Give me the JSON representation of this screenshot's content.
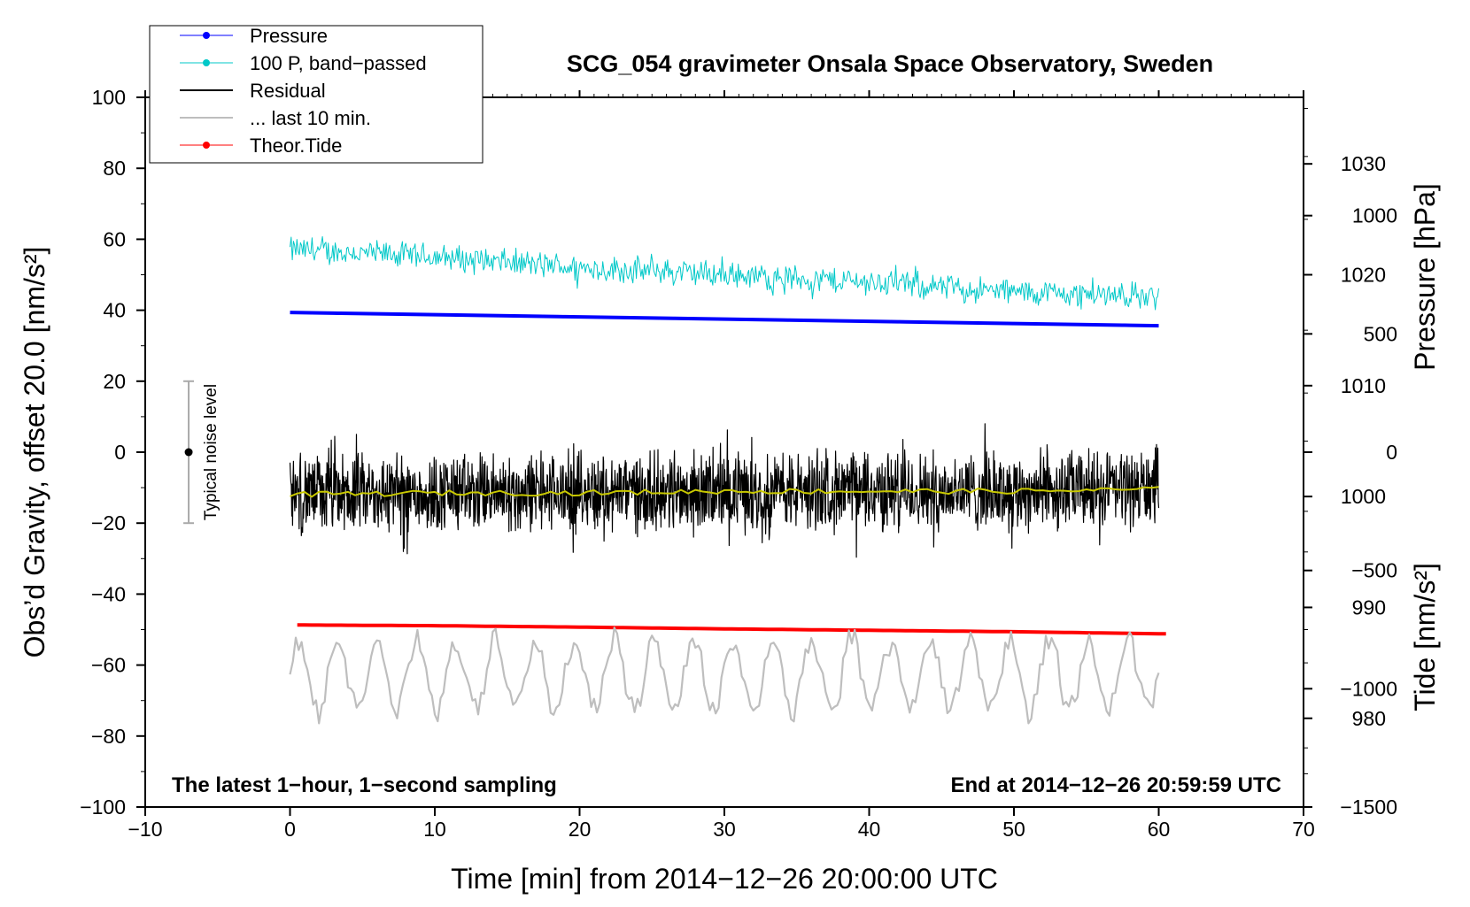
{
  "chart_data": {
    "type": "line",
    "title": "SCG_054 gravimeter Onsala Space Observatory, Sweden",
    "xlabel": "Time [min] from 2014−12−26 20:00:00 UTC",
    "ylabel_left": "Obs’d Gravity, offset 20.0 [nm/s²]",
    "ylabel_pressure": "Pressure [hPa]",
    "ylabel_tide": "Tide [nm/s²]",
    "xlim": [
      -10,
      70
    ],
    "ylim": [
      -100,
      100
    ],
    "pressure_ylim": [
      972,
      1036
    ],
    "tide_ylim": [
      -1500,
      1500
    ],
    "x_ticks": [
      "−10",
      "0",
      "10",
      "20",
      "30",
      "40",
      "50",
      "60",
      "70"
    ],
    "x_tick_values": [
      -10,
      0,
      10,
      20,
      30,
      40,
      50,
      60,
      70
    ],
    "y_ticks": [
      "100",
      "80",
      "60",
      "40",
      "20",
      "0",
      "−20",
      "−40",
      "−60",
      "−80",
      "−100"
    ],
    "y_tick_values": [
      100,
      80,
      60,
      40,
      20,
      0,
      -20,
      -40,
      -60,
      -80,
      -100
    ],
    "pressure_ticks": [
      "1030",
      "1020",
      "1010",
      "1000",
      "990",
      "980"
    ],
    "pressure_tick_values": [
      1030,
      1020,
      1010,
      1000,
      990,
      980
    ],
    "tide_ticks": [
      "1000",
      "500",
      "0",
      "−500",
      "−1000",
      "−1500"
    ],
    "tide_tick_values": [
      1000,
      500,
      0,
      -500,
      -1000,
      -1500
    ],
    "annotations": {
      "bottom_left": "The latest 1−hour, 1−second sampling",
      "bottom_right": "End at 2014−12−26 20:59:59 UTC",
      "noise": "Typical noise level"
    },
    "noise_bar": {
      "x": -7,
      "center": 0,
      "low": -20,
      "high": 20
    },
    "legend": [
      {
        "label": "Pressure",
        "color": "#0000ff"
      },
      {
        "label": "100 P, band−passed",
        "color": "#00c8c8"
      },
      {
        "label": "Residual",
        "color": "#000000"
      },
      {
        "label": "... last 10 min.",
        "color": "#bebebe"
      },
      {
        "label": "Theor.Tide",
        "color": "#ff0000"
      }
    ],
    "series": [
      {
        "name": "Pressure",
        "axis": "pressure",
        "x": [
          0,
          10,
          20,
          30,
          40,
          50,
          60
        ],
        "values": [
          1016.6,
          1016.4,
          1016.2,
          1016.0,
          1015.8,
          1015.6,
          1015.4
        ],
        "color": "#0000ff"
      },
      {
        "name": "100 P, band−passed",
        "axis": "gravity",
        "x": [
          0,
          10,
          20,
          30,
          40,
          50,
          60
        ],
        "values": [
          57,
          55,
          52,
          50,
          48,
          45,
          44
        ],
        "noise_amplitude": 7,
        "color": "#00c8c8"
      },
      {
        "name": "Residual",
        "axis": "gravity",
        "x": [
          0,
          10,
          20,
          30,
          40,
          50,
          60
        ],
        "values": [
          -12,
          -11.5,
          -11.5,
          -11,
          -11,
          -11,
          -10
        ],
        "noise_amplitude": 20,
        "color": "#000000"
      },
      {
        "name": "Residual smoothed",
        "axis": "gravity",
        "x": [
          0,
          10,
          20,
          30,
          40,
          50,
          60
        ],
        "values": [
          -12,
          -11.5,
          -11.5,
          -11,
          -11,
          -11,
          -10.5
        ],
        "color": "#c8c800"
      },
      {
        "name": "Theor.Tide",
        "axis": "gravity",
        "x": [
          0.5,
          10,
          20,
          30,
          40,
          50,
          60.5
        ],
        "values": [
          -48.7,
          -48.9,
          -49.3,
          -49.8,
          -50.2,
          -50.6,
          -51.2
        ],
        "color": "#ff0000"
      },
      {
        "name": "... last 10 min.",
        "axis": "gravity",
        "x": [
          0,
          10,
          20,
          30,
          40,
          50,
          60
        ],
        "values": [
          -63,
          -63,
          -63,
          -63,
          -63,
          -63,
          -63
        ],
        "noise_amplitude": 13,
        "color": "#bebebe"
      }
    ]
  }
}
